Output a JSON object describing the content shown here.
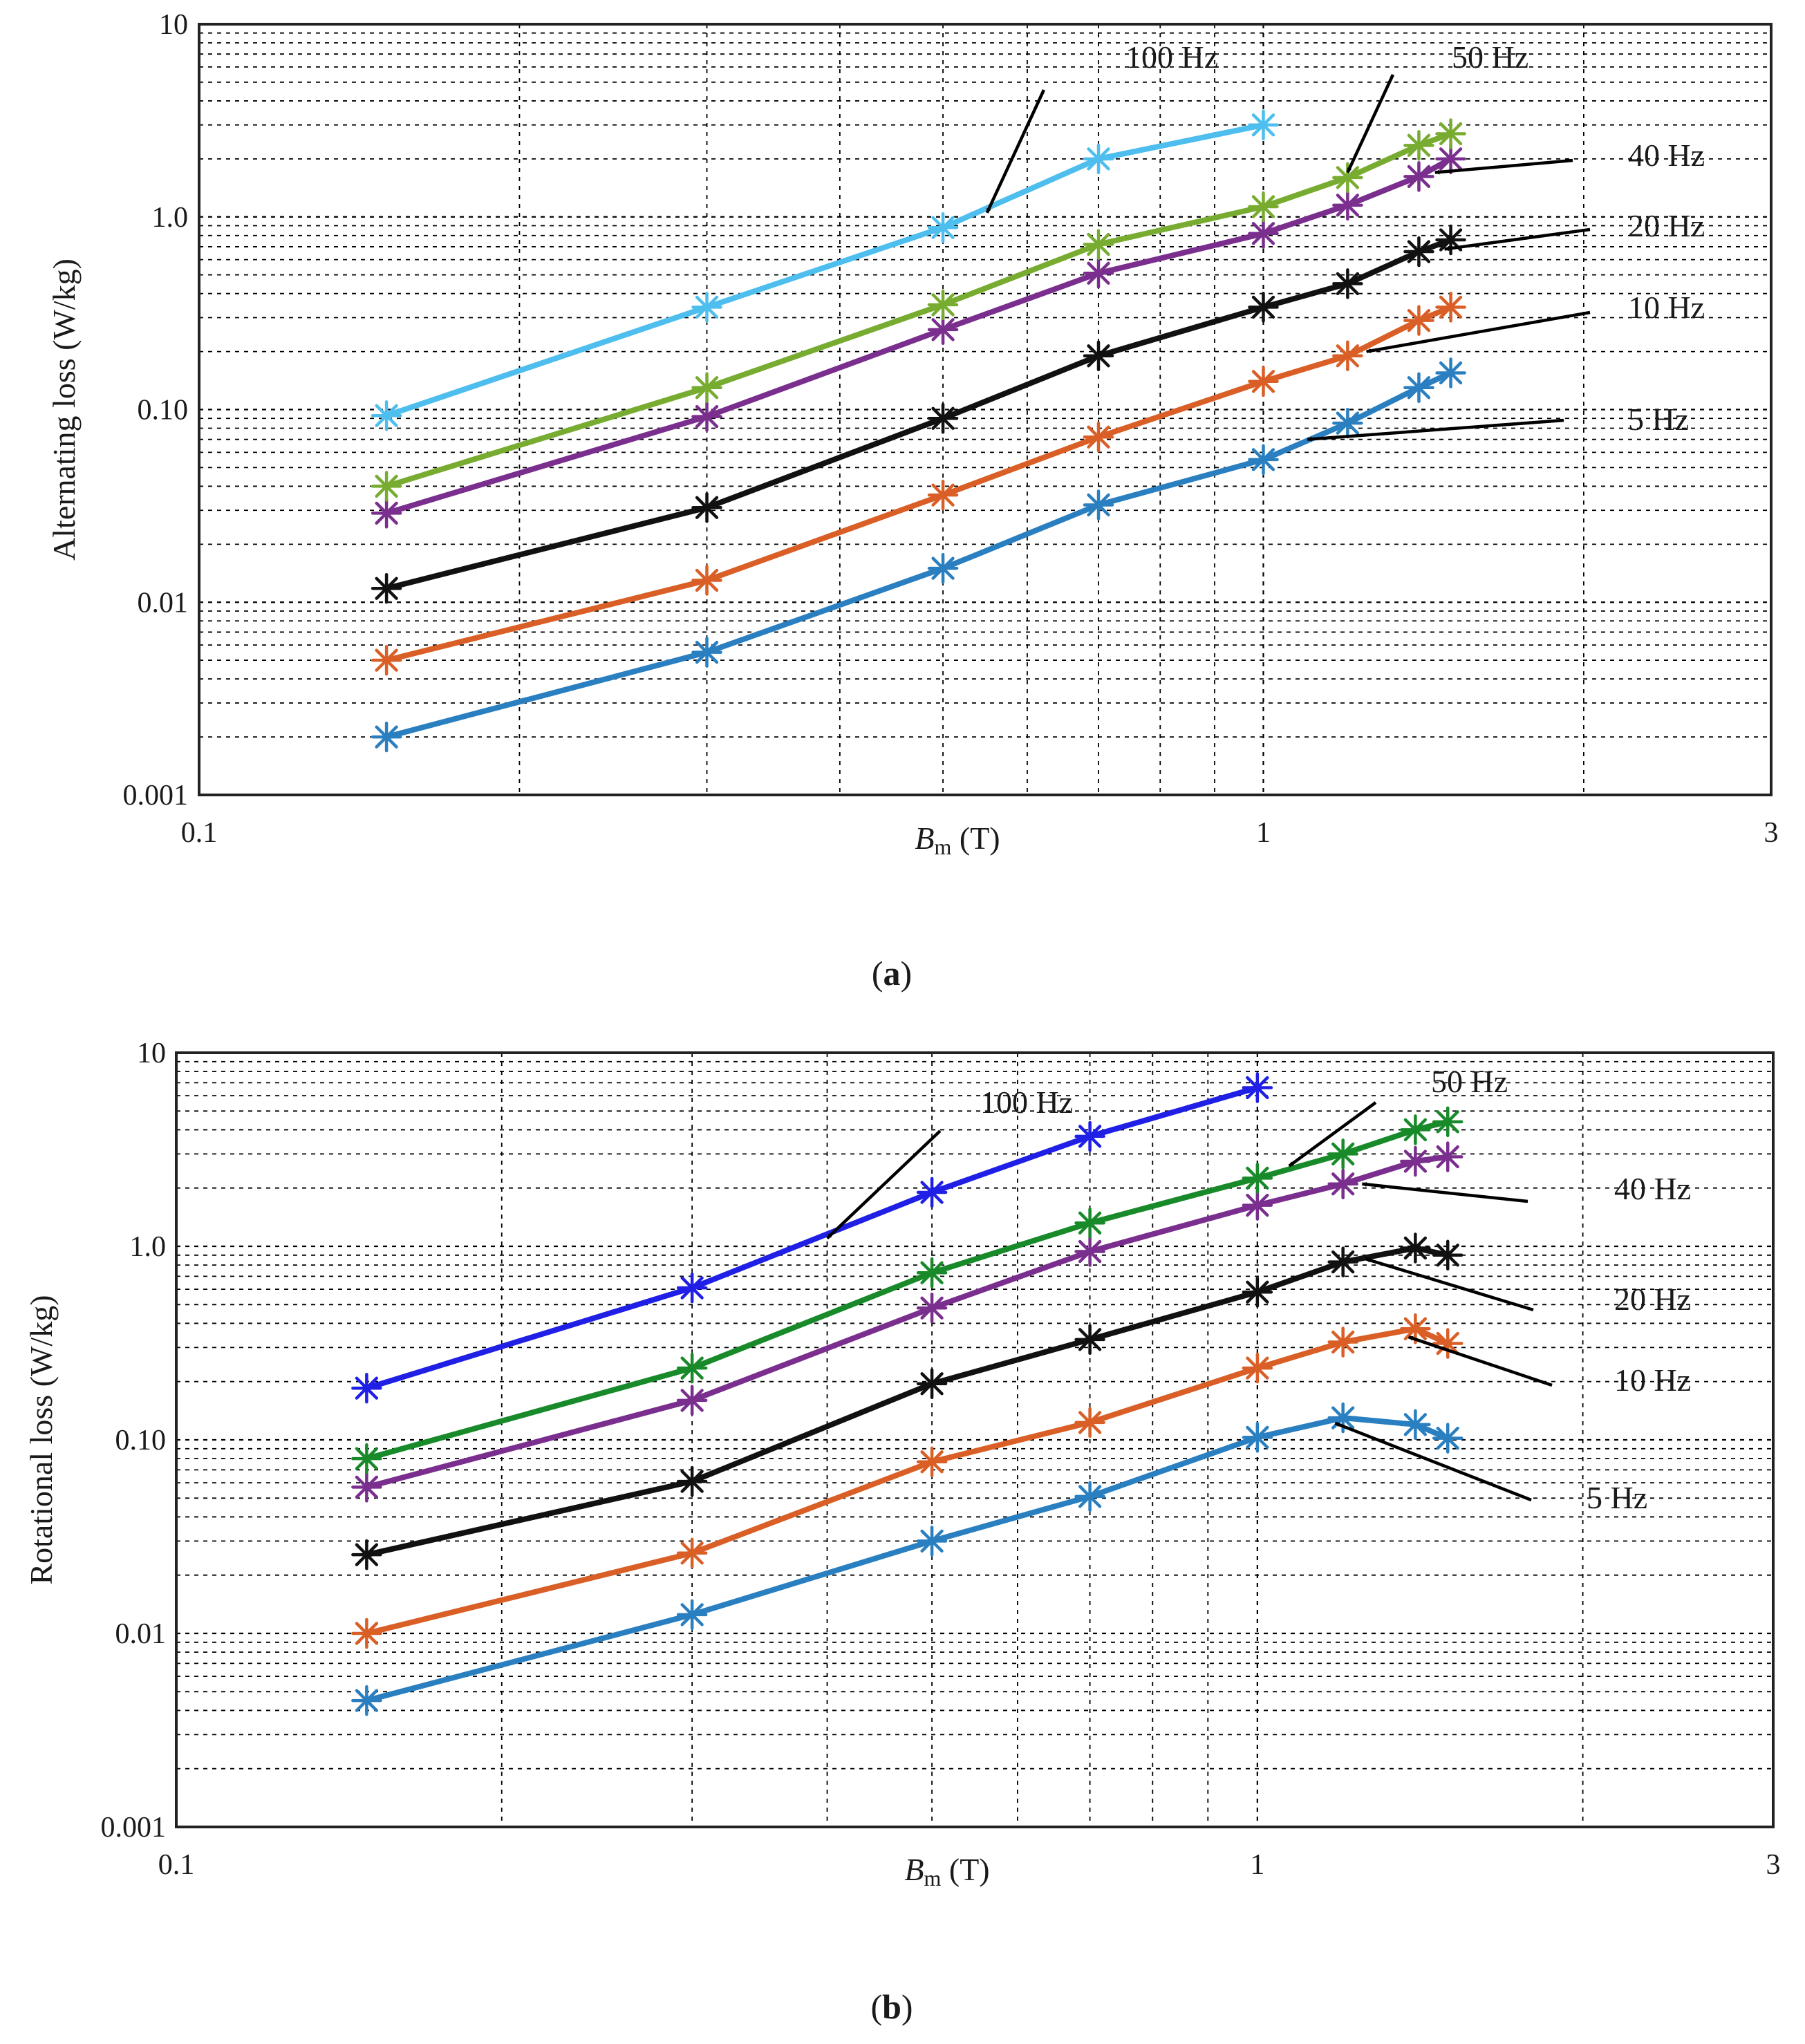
{
  "chart_data": [
    {
      "type": "line",
      "panel_label": "a",
      "xlabel_symbol": "B",
      "xlabel_subscript": "m",
      "xlabel_unit": " (T)",
      "ylabel": "Alternating loss (W/kg)",
      "x_scale": "log",
      "y_scale": "log",
      "xlim": [
        0.1,
        3
      ],
      "ylim": [
        0.001,
        10
      ],
      "x_ticks": [
        {
          "value": 0.1,
          "label": "0.1"
        },
        {
          "value": 1,
          "label": "1"
        },
        {
          "value": 3,
          "label": "3"
        }
      ],
      "y_ticks": [
        {
          "value": 0.001,
          "label": "0.001"
        },
        {
          "value": 0.01,
          "label": "0.01"
        },
        {
          "value": 0.1,
          "label": "0.10"
        },
        {
          "value": 1,
          "label": "1.0"
        },
        {
          "value": 10,
          "label": "10"
        }
      ],
      "grid": true,
      "series": [
        {
          "name": "5 Hz",
          "color": "#2a7fc0",
          "x": [
            0.15,
            0.3,
            0.5,
            0.7,
            1.0,
            1.2,
            1.4,
            1.5
          ],
          "y": [
            0.002,
            0.0055,
            0.015,
            0.032,
            0.055,
            0.085,
            0.13,
            0.155
          ]
        },
        {
          "name": "10 Hz",
          "color": "#d95f26",
          "x": [
            0.15,
            0.3,
            0.5,
            0.7,
            1.0,
            1.2,
            1.4,
            1.5
          ],
          "y": [
            0.005,
            0.013,
            0.036,
            0.072,
            0.14,
            0.19,
            0.29,
            0.34
          ]
        },
        {
          "name": "20 Hz",
          "color": "#111111",
          "x": [
            0.15,
            0.3,
            0.5,
            0.7,
            1.0,
            1.2,
            1.4,
            1.5
          ],
          "y": [
            0.0118,
            0.031,
            0.09,
            0.19,
            0.34,
            0.45,
            0.66,
            0.76
          ]
        },
        {
          "name": "40 Hz",
          "color": "#7a2e8e",
          "x": [
            0.15,
            0.3,
            0.5,
            0.7,
            1.0,
            1.2,
            1.4,
            1.5
          ],
          "y": [
            0.029,
            0.092,
            0.26,
            0.51,
            0.82,
            1.15,
            1.62,
            2.0
          ]
        },
        {
          "name": "50 Hz",
          "color": "#77ac30",
          "x": [
            0.15,
            0.3,
            0.5,
            0.7,
            1.0,
            1.2,
            1.4,
            1.5
          ],
          "y": [
            0.04,
            0.13,
            0.35,
            0.72,
            1.13,
            1.6,
            2.35,
            2.7
          ]
        },
        {
          "name": "100 Hz",
          "color": "#4dbeee",
          "x": [
            0.15,
            0.3,
            0.5,
            0.7,
            1.0
          ],
          "y": [
            0.093,
            0.34,
            0.88,
            2.0,
            3.0
          ]
        }
      ],
      "annotations": [
        {
          "text": "100 Hz",
          "target": [
            0.55,
            1.05
          ]
        },
        {
          "text": "50 Hz",
          "target": [
            1.2,
            1.7
          ]
        },
        {
          "text": "40 Hz",
          "target": [
            1.45,
            1.7
          ]
        },
        {
          "text": "20 Hz",
          "target": [
            1.48,
            0.68
          ]
        },
        {
          "text": "10 Hz",
          "target": [
            1.25,
            0.2
          ]
        },
        {
          "text": "5 Hz",
          "target": [
            1.1,
            0.07
          ]
        }
      ]
    },
    {
      "type": "line",
      "panel_label": "b",
      "xlabel_symbol": "B",
      "xlabel_subscript": "m",
      "xlabel_unit": " (T)",
      "ylabel": "Rotational loss (W/kg)",
      "x_scale": "log",
      "y_scale": "log",
      "xlim": [
        0.1,
        3
      ],
      "ylim": [
        0.001,
        10
      ],
      "x_ticks": [
        {
          "value": 0.1,
          "label": "0.1"
        },
        {
          "value": 1,
          "label": "1"
        },
        {
          "value": 3,
          "label": "3"
        }
      ],
      "y_ticks": [
        {
          "value": 0.001,
          "label": "0.001"
        },
        {
          "value": 0.01,
          "label": "0.01"
        },
        {
          "value": 0.1,
          "label": "0.10"
        },
        {
          "value": 1,
          "label": "1.0"
        },
        {
          "value": 10,
          "label": "10"
        }
      ],
      "grid": true,
      "series": [
        {
          "name": "5 Hz",
          "color": "#2a7fc0",
          "x": [
            0.15,
            0.3,
            0.5,
            0.7,
            1.0,
            1.2,
            1.4,
            1.5
          ],
          "y": [
            0.0045,
            0.0125,
            0.03,
            0.051,
            0.103,
            0.13,
            0.12,
            0.102
          ]
        },
        {
          "name": "10 Hz",
          "color": "#d95f26",
          "x": [
            0.15,
            0.3,
            0.5,
            0.7,
            1.0,
            1.2,
            1.4,
            1.5
          ],
          "y": [
            0.01,
            0.026,
            0.077,
            0.123,
            0.235,
            0.32,
            0.375,
            0.315
          ]
        },
        {
          "name": "20 Hz",
          "color": "#111111",
          "x": [
            0.15,
            0.3,
            0.5,
            0.7,
            1.0,
            1.2,
            1.4,
            1.5
          ],
          "y": [
            0.0255,
            0.061,
            0.195,
            0.33,
            0.58,
            0.83,
            0.98,
            0.9
          ]
        },
        {
          "name": "40 Hz",
          "color": "#7a2e8e",
          "x": [
            0.15,
            0.3,
            0.5,
            0.7,
            1.0,
            1.2,
            1.4,
            1.5
          ],
          "y": [
            0.057,
            0.16,
            0.48,
            0.94,
            1.63,
            2.1,
            2.75,
            2.9
          ]
        },
        {
          "name": "50 Hz",
          "color": "#188a2a",
          "x": [
            0.15,
            0.3,
            0.5,
            0.7,
            1.0,
            1.2,
            1.4,
            1.5
          ],
          "y": [
            0.08,
            0.235,
            0.73,
            1.32,
            2.25,
            3.0,
            4.0,
            4.4
          ]
        },
        {
          "name": "100 Hz",
          "color": "#1f1fe6",
          "x": [
            0.15,
            0.3,
            0.5,
            0.7,
            1.0
          ],
          "y": [
            0.185,
            0.61,
            1.9,
            3.7,
            6.6
          ]
        }
      ],
      "annotations": [
        {
          "text": "100 Hz",
          "target": [
            0.4,
            1.1
          ]
        },
        {
          "text": "50 Hz",
          "target": [
            1.07,
            2.6
          ]
        },
        {
          "text": "40 Hz",
          "target": [
            1.25,
            2.1
          ]
        },
        {
          "text": "20 Hz",
          "target": [
            1.26,
            0.86
          ]
        },
        {
          "text": "10 Hz",
          "target": [
            1.38,
            0.34
          ]
        },
        {
          "text": "5 Hz",
          "target": [
            1.18,
            0.122
          ]
        }
      ]
    }
  ]
}
